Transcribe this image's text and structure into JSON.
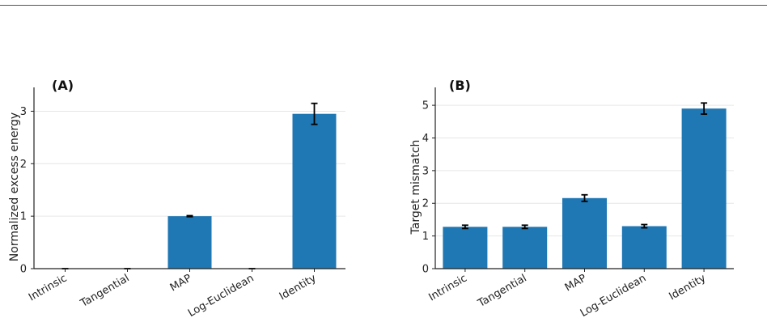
{
  "colors": {
    "bar": "#1f77b4",
    "grid": "#e6e6e6",
    "axis": "#222222",
    "error": "#000000"
  },
  "chart_data": [
    {
      "type": "bar",
      "panel_label": "(A)",
      "title": "",
      "xlabel": "",
      "ylabel": "Normalized excess energy",
      "categories": [
        "Intrinsic",
        "Tangential",
        "MAP",
        "Log-Euclidean",
        "Identity"
      ],
      "values": [
        0,
        0,
        1.0,
        0,
        2.95
      ],
      "errors": [
        0,
        0,
        0.01,
        0,
        0.2
      ],
      "ylim": [
        0,
        3.3
      ],
      "yticks": [
        0,
        1,
        2,
        3
      ],
      "grid": true,
      "legend": "none"
    },
    {
      "type": "bar",
      "panel_label": "(B)",
      "title": "",
      "xlabel": "",
      "ylabel": "Target mismatch",
      "categories": [
        "Intrinsic",
        "Tangential",
        "MAP",
        "Log-Euclidean",
        "Identity"
      ],
      "values": [
        1.28,
        1.28,
        2.16,
        1.3,
        4.9
      ],
      "errors": [
        0.05,
        0.05,
        0.1,
        0.05,
        0.17
      ],
      "ylim": [
        0,
        5.3
      ],
      "yticks": [
        0,
        1,
        2,
        3,
        4,
        5
      ],
      "grid": true,
      "legend": "none"
    }
  ]
}
